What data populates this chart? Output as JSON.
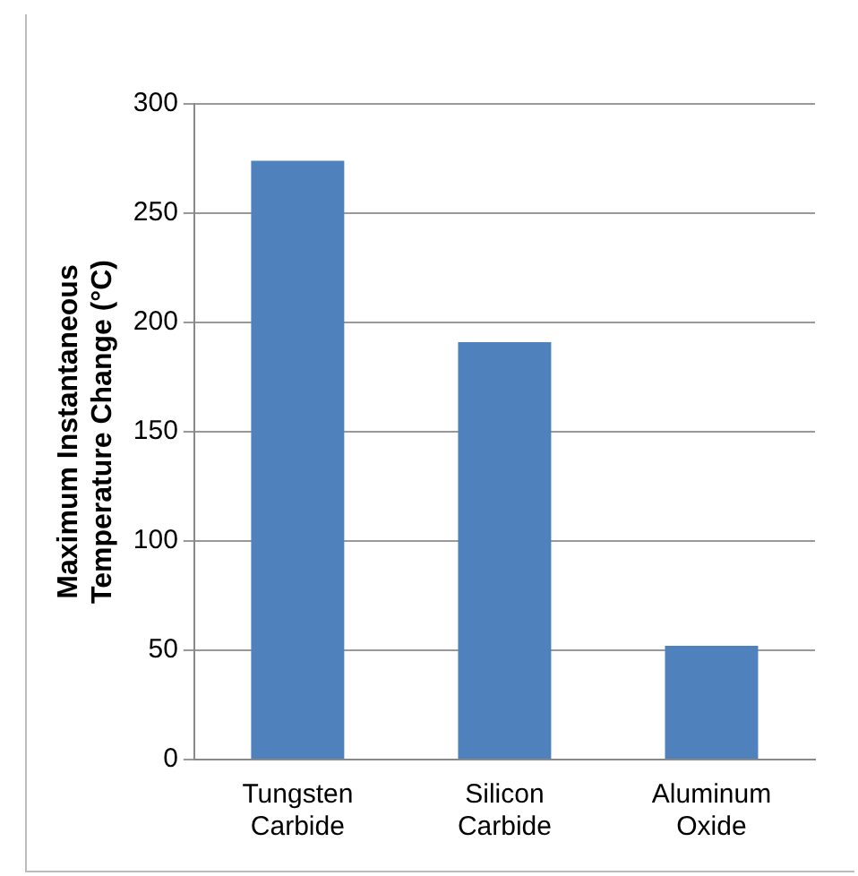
{
  "chart_data": {
    "type": "bar",
    "ylabel": "Maximum Instantaneous Temperature Change (°C)",
    "categories": [
      "Tungsten Carbide",
      "Silicon Carbide",
      "Aluminum Oxide"
    ],
    "values": [
      274,
      191,
      52
    ],
    "color": "#4f81bd",
    "ylim": [
      0,
      300
    ],
    "yticks": [
      0,
      50,
      100,
      150,
      200,
      250,
      300
    ],
    "grid": "y",
    "legend": false
  }
}
